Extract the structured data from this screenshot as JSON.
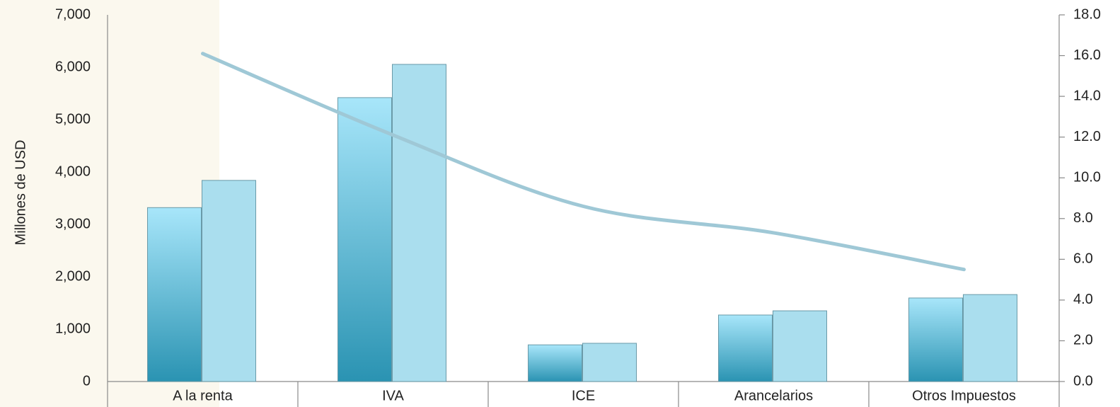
{
  "chart_data": {
    "type": "bar",
    "y_label": "Millones de USD",
    "categories": [
      "A la renta",
      "IVA",
      "ICE",
      "Arancelarios",
      "Otros Impuestos"
    ],
    "series": [
      {
        "color": "#2c9ab8",
        "values": [
          3320,
          5420,
          700,
          1270,
          1595
        ]
      },
      {
        "color": "#aadeee",
        "values": [
          3840,
          6055,
          730,
          1350,
          1660
        ]
      },
      {
        "type": "line",
        "axis": "y2",
        "color": "#9fc8d6",
        "values": [
          16.1,
          12.1,
          8.6,
          7.3,
          5.5
        ]
      }
    ],
    "ylim": [
      0,
      7000
    ],
    "yticks": [
      0,
      {
        "value": 1000,
        "label": "1,000"
      },
      {
        "value": 2000,
        "label": "2,000"
      },
      {
        "value": 3000,
        "label": "3,000"
      },
      {
        "value": 4000,
        "label": "4,000"
      },
      {
        "value": 5000,
        "label": "5,000"
      },
      {
        "value": 6000,
        "label": "6,000"
      },
      {
        "value": 7000,
        "label": "7,000"
      }
    ],
    "y2lim": [
      0,
      18
    ],
    "y2ticks": [
      {
        "value": 0,
        "label": "0.0"
      },
      {
        "value": 2,
        "label": "2.0"
      },
      {
        "value": 4,
        "label": "4.0"
      },
      {
        "value": 6,
        "label": "6.0"
      },
      {
        "value": 8,
        "label": "8.0"
      },
      {
        "value": 10,
        "label": "10.0"
      },
      {
        "value": 12,
        "label": "12.0"
      },
      {
        "value": 14,
        "label": "14.0"
      },
      {
        "value": 16,
        "label": "16.0"
      },
      {
        "value": 18,
        "label": "18.0"
      }
    ]
  }
}
